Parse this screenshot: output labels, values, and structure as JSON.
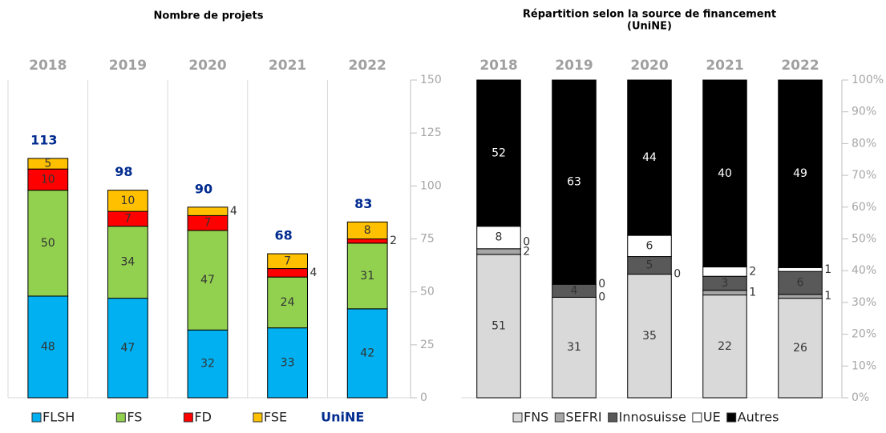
{
  "chart_data": [
    {
      "type": "bar",
      "stacked": true,
      "title": [
        "Nombre de projets"
      ],
      "categories": [
        "2018",
        "2019",
        "2020",
        "2021",
        "2022"
      ],
      "series": [
        {
          "name": "FLSH",
          "color": "#00b0f0",
          "label_color": "#333333",
          "values": [
            48,
            47,
            32,
            33,
            42
          ]
        },
        {
          "name": "FS",
          "color": "#92d050",
          "label_color": "#333333",
          "values": [
            50,
            34,
            47,
            24,
            31
          ]
        },
        {
          "name": "FD",
          "color": "#ff0000",
          "label_color": "#333333",
          "values": [
            10,
            7,
            7,
            4,
            2
          ]
        },
        {
          "name": "FSE",
          "color": "#ffc000",
          "label_color": "#333333",
          "values": [
            5,
            10,
            4,
            7,
            8
          ]
        }
      ],
      "totals": {
        "name": "UniNE",
        "color": "#002b8f",
        "values": [
          113,
          98,
          90,
          68,
          83
        ]
      },
      "ylim": [
        0,
        150
      ],
      "yticks": [
        0,
        25,
        50,
        75,
        100,
        125,
        150
      ],
      "separators": true
    },
    {
      "type": "bar",
      "stacked": "percent",
      "title": [
        "Répartition selon la source de financement",
        "(UniNE)"
      ],
      "categories": [
        "2018",
        "2019",
        "2020",
        "2021",
        "2022"
      ],
      "series": [
        {
          "name": "FNS",
          "color": "#d9d9d9",
          "label_color": "#333333",
          "values": [
            51,
            31,
            35,
            22,
            26
          ]
        },
        {
          "name": "SEFRI",
          "color": "#a6a6a6",
          "label_color": "#333333",
          "values": [
            2,
            0,
            0,
            1,
            1
          ]
        },
        {
          "name": "Innosuisse",
          "color": "#595959",
          "label_color": "#333333",
          "values": [
            0,
            4,
            5,
            3,
            6
          ]
        },
        {
          "name": "UE",
          "color": "#ffffff",
          "label_color": "#333333",
          "values": [
            8,
            0,
            6,
            2,
            1
          ]
        },
        {
          "name": "Autres",
          "color": "#000000",
          "label_color": "#ffffff",
          "values": [
            52,
            63,
            44,
            40,
            49
          ]
        }
      ],
      "ylim": [
        0,
        100
      ],
      "yticks": [
        {
          "value": 0,
          "label": "0%"
        },
        {
          "value": 10,
          "label": "10%"
        },
        {
          "value": 20,
          "label": "20%"
        },
        {
          "value": 30,
          "label": "30%"
        },
        {
          "value": 40,
          "label": "40%"
        },
        {
          "value": 50,
          "label": "50%"
        },
        {
          "value": 60,
          "label": "60%"
        },
        {
          "value": 70,
          "label": "70%"
        },
        {
          "value": 80,
          "label": "80%"
        },
        {
          "value": 90,
          "label": "90%"
        },
        {
          "value": 100,
          "label": "100%"
        }
      ],
      "separators": false
    }
  ]
}
